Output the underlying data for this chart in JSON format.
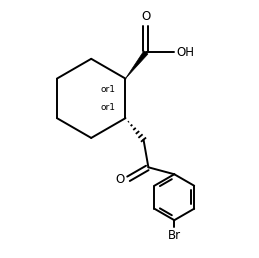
{
  "background_color": "#ffffff",
  "line_color": "#000000",
  "line_width": 1.4,
  "font_size": 8.5,
  "figsize": [
    2.59,
    2.58
  ],
  "dpi": 100,
  "xlim": [
    0,
    10
  ],
  "ylim": [
    0,
    10
  ]
}
